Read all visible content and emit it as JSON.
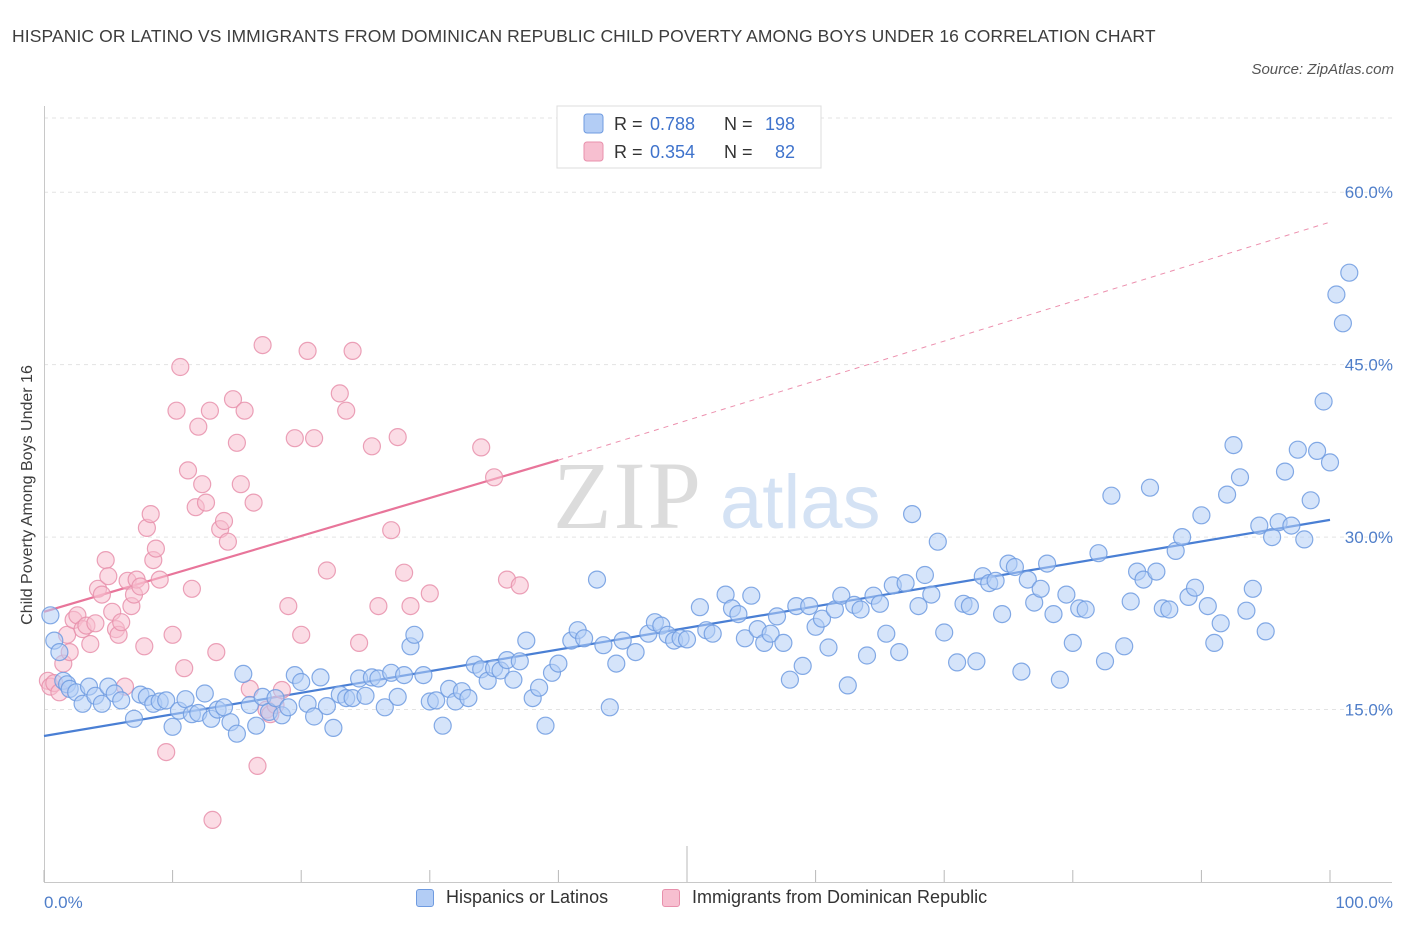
{
  "title": "HISPANIC OR LATINO VS IMMIGRANTS FROM DOMINICAN REPUBLIC CHILD POVERTY AMONG BOYS UNDER 16 CORRELATION CHART",
  "source": "Source: ZipAtlas.com",
  "watermark": {
    "zip": "ZIP",
    "atlas": "atlas"
  },
  "colors": {
    "blue": "#4a7fd4",
    "blue_fill": "#b3cdf5",
    "pink": "#e8759a",
    "pink_fill": "#f7bfd0",
    "axis_text": "#4f7ec9"
  },
  "stats_legend": [
    {
      "r_label": "R =",
      "r_value": "0.788",
      "n_label": "N =",
      "n_value": "198",
      "series": "blue"
    },
    {
      "r_label": "R =",
      "r_value": "0.354",
      "n_label": "N =",
      "n_value": "82",
      "series": "pink"
    }
  ],
  "chart_data": {
    "type": "scatter",
    "xlabel": "",
    "ylabel": "Child Poverty Among Boys Under 16",
    "x_range": [
      0,
      100
    ],
    "y_range": [
      0,
      67.5
    ],
    "x_tick_labels": [
      "0.0%",
      "100.0%"
    ],
    "y_ticks": [
      15,
      30,
      45,
      60
    ],
    "y_tick_labels": [
      "15.0%",
      "30.0%",
      "45.0%",
      "60.0%"
    ],
    "grid": "dashed horizontal",
    "series": [
      {
        "name": "Hispanics or Latinos",
        "color": "blue",
        "R": 0.788,
        "N": 198,
        "trend": {
          "x0": 0,
          "y0": 12.7,
          "x1": 100,
          "y1": 31.5
        },
        "points": [
          [
            0.5,
            23.2
          ],
          [
            0.8,
            21.0
          ],
          [
            1.2,
            20.0
          ],
          [
            1.5,
            17.5
          ],
          [
            1.8,
            17.2
          ],
          [
            2.0,
            16.8
          ],
          [
            2.5,
            16.5
          ],
          [
            3.0,
            15.5
          ],
          [
            3.5,
            17.0
          ],
          [
            4.0,
            16.2
          ],
          [
            4.5,
            15.5
          ],
          [
            5.0,
            17.0
          ],
          [
            5.5,
            16.4
          ],
          [
            6.0,
            15.8
          ],
          [
            7.0,
            14.2
          ],
          [
            7.5,
            16.3
          ],
          [
            8.0,
            16.1
          ],
          [
            8.5,
            15.5
          ],
          [
            9.0,
            15.7
          ],
          [
            9.5,
            15.8
          ],
          [
            10.0,
            13.5
          ],
          [
            10.5,
            14.9
          ],
          [
            11.0,
            15.9
          ],
          [
            11.5,
            14.6
          ],
          [
            12.0,
            14.7
          ],
          [
            12.5,
            16.4
          ],
          [
            13.0,
            14.2
          ],
          [
            13.5,
            15.0
          ],
          [
            14.0,
            15.2
          ],
          [
            14.5,
            13.9
          ],
          [
            15.0,
            12.9
          ],
          [
            15.5,
            18.1
          ],
          [
            16.0,
            15.4
          ],
          [
            16.5,
            13.6
          ],
          [
            17.0,
            16.1
          ],
          [
            17.5,
            14.8
          ],
          [
            18.0,
            16.0
          ],
          [
            18.5,
            14.5
          ],
          [
            19.0,
            15.2
          ],
          [
            19.5,
            18.0
          ],
          [
            20.0,
            17.4
          ],
          [
            20.5,
            15.5
          ],
          [
            21.0,
            14.4
          ],
          [
            21.5,
            17.8
          ],
          [
            22.0,
            15.3
          ],
          [
            22.5,
            13.4
          ],
          [
            23.0,
            16.3
          ],
          [
            23.5,
            16.0
          ],
          [
            24.0,
            16.0
          ],
          [
            24.5,
            17.7
          ],
          [
            25.0,
            16.2
          ],
          [
            25.5,
            17.8
          ],
          [
            26.0,
            17.7
          ],
          [
            26.5,
            15.2
          ],
          [
            27.0,
            18.2
          ],
          [
            27.5,
            16.1
          ],
          [
            28.0,
            18.0
          ],
          [
            28.5,
            20.5
          ],
          [
            28.8,
            21.5
          ],
          [
            29.5,
            18.0
          ],
          [
            30.0,
            15.7
          ],
          [
            30.5,
            15.8
          ],
          [
            31.0,
            13.6
          ],
          [
            31.5,
            16.8
          ],
          [
            32.0,
            15.7
          ],
          [
            32.5,
            16.6
          ],
          [
            33.0,
            16.0
          ],
          [
            33.5,
            18.9
          ],
          [
            34.0,
            18.5
          ],
          [
            34.5,
            17.5
          ],
          [
            35.0,
            18.6
          ],
          [
            35.5,
            18.4
          ],
          [
            36.0,
            19.3
          ],
          [
            36.5,
            17.6
          ],
          [
            37.0,
            19.2
          ],
          [
            37.5,
            21.0
          ],
          [
            38.0,
            16.0
          ],
          [
            38.5,
            16.9
          ],
          [
            39.0,
            13.6
          ],
          [
            39.5,
            18.2
          ],
          [
            40.0,
            19.0
          ],
          [
            41.0,
            21.0
          ],
          [
            41.5,
            21.9
          ],
          [
            42.0,
            21.2
          ],
          [
            43.0,
            26.3
          ],
          [
            43.5,
            20.6
          ],
          [
            44.0,
            15.2
          ],
          [
            44.5,
            19.0
          ],
          [
            45.0,
            21.0
          ],
          [
            46.0,
            20.0
          ],
          [
            47.0,
            21.6
          ],
          [
            47.5,
            22.6
          ],
          [
            48.0,
            22.3
          ],
          [
            48.5,
            21.5
          ],
          [
            49.0,
            21.0
          ],
          [
            49.5,
            21.2
          ],
          [
            50.0,
            21.1
          ],
          [
            51.0,
            23.9
          ],
          [
            51.5,
            21.9
          ],
          [
            52.0,
            21.6
          ],
          [
            53.0,
            25.0
          ],
          [
            53.5,
            23.8
          ],
          [
            54.0,
            23.3
          ],
          [
            54.5,
            21.2
          ],
          [
            55.0,
            24.9
          ],
          [
            55.5,
            22.0
          ],
          [
            56.0,
            20.8
          ],
          [
            56.5,
            21.6
          ],
          [
            57.0,
            23.1
          ],
          [
            57.5,
            20.8
          ],
          [
            58.0,
            17.6
          ],
          [
            58.5,
            24.0
          ],
          [
            59.0,
            18.8
          ],
          [
            59.5,
            24.0
          ],
          [
            60.0,
            22.2
          ],
          [
            60.5,
            22.9
          ],
          [
            61.0,
            20.4
          ],
          [
            61.5,
            23.7
          ],
          [
            62.0,
            24.9
          ],
          [
            62.5,
            17.1
          ],
          [
            63.0,
            24.1
          ],
          [
            63.5,
            23.7
          ],
          [
            64.0,
            19.7
          ],
          [
            64.5,
            24.9
          ],
          [
            65.0,
            24.2
          ],
          [
            65.5,
            21.6
          ],
          [
            66.0,
            25.8
          ],
          [
            66.5,
            20.0
          ],
          [
            67.0,
            26.0
          ],
          [
            67.5,
            32.0
          ],
          [
            68.0,
            24.0
          ],
          [
            68.5,
            26.7
          ],
          [
            69.0,
            25.0
          ],
          [
            69.5,
            29.6
          ],
          [
            70.0,
            21.7
          ],
          [
            71.0,
            19.1
          ],
          [
            71.5,
            24.2
          ],
          [
            72.0,
            24.0
          ],
          [
            72.5,
            19.2
          ],
          [
            73.0,
            26.6
          ],
          [
            73.5,
            26.0
          ],
          [
            74.0,
            26.2
          ],
          [
            74.5,
            23.3
          ],
          [
            75.0,
            27.7
          ],
          [
            75.5,
            27.4
          ],
          [
            76.0,
            18.3
          ],
          [
            76.5,
            26.3
          ],
          [
            77.0,
            24.3
          ],
          [
            77.5,
            25.5
          ],
          [
            78.0,
            27.7
          ],
          [
            78.5,
            23.3
          ],
          [
            79.0,
            17.6
          ],
          [
            79.5,
            25.0
          ],
          [
            80.0,
            20.8
          ],
          [
            80.5,
            23.8
          ],
          [
            81.0,
            23.7
          ],
          [
            82.0,
            28.6
          ],
          [
            82.5,
            19.2
          ],
          [
            83.0,
            33.6
          ],
          [
            84.0,
            20.5
          ],
          [
            84.5,
            24.4
          ],
          [
            85.0,
            27.0
          ],
          [
            85.5,
            26.3
          ],
          [
            86.0,
            34.3
          ],
          [
            86.5,
            27.0
          ],
          [
            87.0,
            23.8
          ],
          [
            87.5,
            23.7
          ],
          [
            88.0,
            28.8
          ],
          [
            88.5,
            30.0
          ],
          [
            89.0,
            24.8
          ],
          [
            89.5,
            25.6
          ],
          [
            90.0,
            31.9
          ],
          [
            90.5,
            24.0
          ],
          [
            91.0,
            20.8
          ],
          [
            91.5,
            22.5
          ],
          [
            92.0,
            33.7
          ],
          [
            92.5,
            38.0
          ],
          [
            93.0,
            35.2
          ],
          [
            93.5,
            23.6
          ],
          [
            94.0,
            25.5
          ],
          [
            94.5,
            31.0
          ],
          [
            95.0,
            21.8
          ],
          [
            95.5,
            30.0
          ],
          [
            96.0,
            31.3
          ],
          [
            96.5,
            35.7
          ],
          [
            97.0,
            31.0
          ],
          [
            97.5,
            37.6
          ],
          [
            98.0,
            29.8
          ],
          [
            98.5,
            33.2
          ],
          [
            99.0,
            37.5
          ],
          [
            99.5,
            41.8
          ],
          [
            100.0,
            36.5
          ],
          [
            100.5,
            51.1
          ],
          [
            101.0,
            48.6
          ],
          [
            101.5,
            53.0
          ]
        ]
      },
      {
        "name": "Immigrants from Dominican Republic",
        "color": "pink",
        "R": 0.354,
        "N": 82,
        "trend": {
          "x0": 0,
          "y0": 23.5,
          "x1": 40,
          "y1": 36.7,
          "dashed_to_x": 100,
          "dashed_to_y": 57.4
        },
        "points": [
          [
            0.3,
            17.5
          ],
          [
            0.5,
            17.0
          ],
          [
            0.8,
            17.3
          ],
          [
            1.2,
            16.5
          ],
          [
            1.5,
            19.0
          ],
          [
            1.8,
            21.5
          ],
          [
            2.0,
            20.0
          ],
          [
            2.3,
            22.8
          ],
          [
            2.6,
            23.2
          ],
          [
            3.0,
            22.0
          ],
          [
            3.3,
            22.3
          ],
          [
            3.6,
            20.7
          ],
          [
            4.0,
            22.5
          ],
          [
            4.2,
            25.5
          ],
          [
            4.5,
            25.0
          ],
          [
            4.8,
            28.0
          ],
          [
            5.0,
            26.6
          ],
          [
            5.3,
            23.5
          ],
          [
            5.6,
            22.0
          ],
          [
            5.8,
            21.5
          ],
          [
            6.0,
            22.6
          ],
          [
            6.3,
            17.0
          ],
          [
            6.5,
            26.2
          ],
          [
            6.8,
            24.0
          ],
          [
            7.0,
            25.0
          ],
          [
            7.2,
            26.3
          ],
          [
            7.5,
            25.7
          ],
          [
            7.8,
            20.5
          ],
          [
            8.0,
            30.8
          ],
          [
            8.3,
            32.0
          ],
          [
            8.5,
            28.0
          ],
          [
            8.7,
            29.0
          ],
          [
            9.0,
            26.3
          ],
          [
            9.5,
            11.3
          ],
          [
            10.0,
            21.5
          ],
          [
            10.3,
            41.0
          ],
          [
            10.6,
            44.8
          ],
          [
            10.9,
            18.6
          ],
          [
            11.2,
            35.8
          ],
          [
            11.5,
            25.5
          ],
          [
            11.8,
            32.6
          ],
          [
            12.0,
            39.6
          ],
          [
            12.3,
            34.6
          ],
          [
            12.6,
            33.0
          ],
          [
            12.9,
            41.0
          ],
          [
            13.1,
            5.4
          ],
          [
            13.4,
            20.0
          ],
          [
            13.7,
            30.7
          ],
          [
            14.0,
            31.4
          ],
          [
            14.3,
            29.6
          ],
          [
            14.7,
            42.0
          ],
          [
            15.0,
            38.2
          ],
          [
            15.3,
            34.6
          ],
          [
            15.6,
            41.0
          ],
          [
            16.0,
            16.8
          ],
          [
            16.3,
            33.0
          ],
          [
            16.6,
            10.1
          ],
          [
            17.0,
            46.7
          ],
          [
            17.3,
            15.0
          ],
          [
            17.6,
            14.6
          ],
          [
            18.0,
            15.4
          ],
          [
            18.5,
            16.7
          ],
          [
            19.0,
            24.0
          ],
          [
            19.5,
            38.6
          ],
          [
            20.0,
            21.5
          ],
          [
            20.5,
            46.2
          ],
          [
            21.0,
            38.6
          ],
          [
            22.0,
            27.1
          ],
          [
            23.0,
            42.5
          ],
          [
            23.5,
            41.0
          ],
          [
            24.0,
            46.2
          ],
          [
            24.5,
            20.8
          ],
          [
            25.5,
            37.9
          ],
          [
            26.0,
            24.0
          ],
          [
            27.0,
            30.6
          ],
          [
            27.5,
            38.7
          ],
          [
            28.0,
            26.9
          ],
          [
            28.5,
            24.0
          ],
          [
            30.0,
            25.1
          ],
          [
            34.0,
            37.8
          ],
          [
            35.0,
            35.2
          ],
          [
            36.0,
            26.3
          ],
          [
            37.0,
            25.8
          ]
        ]
      }
    ]
  },
  "bottom_legend": [
    {
      "label": "Hispanics or Latinos",
      "series": "blue"
    },
    {
      "label": "Immigrants from Dominican Republic",
      "series": "pink"
    }
  ]
}
